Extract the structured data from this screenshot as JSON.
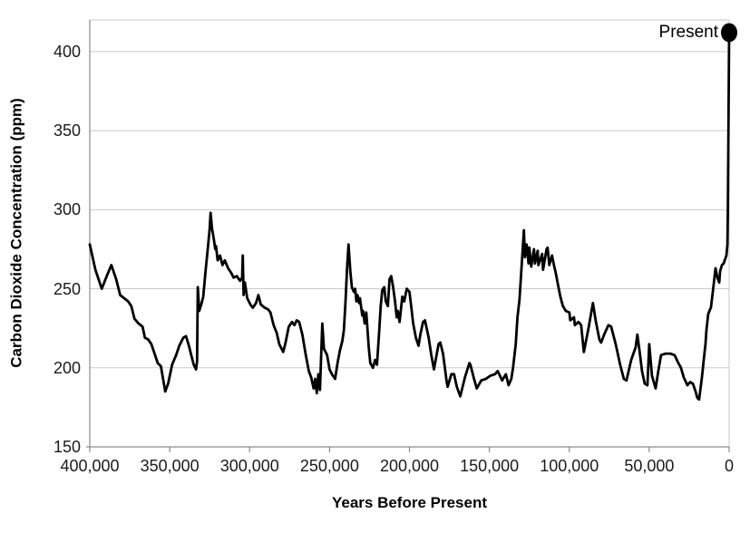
{
  "annotation_label": "Present",
  "colors": {
    "line": "#000000",
    "marker": "#000000",
    "gridline": "#c9c9c9",
    "axis_line": "#8a8a8a",
    "text": "#1a1a1a"
  },
  "chart_data": {
    "type": "line",
    "title": "",
    "xlabel": "Years Before Present",
    "ylabel": "Carbon Dioxide Concentration (ppm)",
    "xlim": [
      400000,
      0
    ],
    "ylim": [
      150,
      420
    ],
    "x_tick_values": [
      400000,
      350000,
      300000,
      250000,
      200000,
      150000,
      100000,
      50000,
      0
    ],
    "x_tick_labels": [
      "400,000",
      "350,000",
      "300,000",
      "250,000",
      "200,000",
      "150,000",
      "100,000",
      "50,000",
      "0"
    ],
    "y_tick_values": [
      150,
      200,
      250,
      300,
      350,
      400
    ],
    "y_tick_labels": [
      "150",
      "200",
      "250",
      "300",
      "350",
      "400"
    ],
    "grid": "horizontal",
    "legend": "none",
    "annotation": {
      "label": "Present",
      "x": 0,
      "y": 412
    },
    "series": [
      {
        "points": [
          [
            400000,
            278
          ],
          [
            396500,
            262
          ],
          [
            392500,
            250
          ],
          [
            389000,
            259
          ],
          [
            386500,
            265
          ],
          [
            383500,
            256
          ],
          [
            381000,
            246
          ],
          [
            378500,
            244
          ],
          [
            376000,
            242
          ],
          [
            374000,
            239
          ],
          [
            372000,
            231
          ],
          [
            369500,
            228
          ],
          [
            367000,
            226
          ],
          [
            365500,
            219
          ],
          [
            363500,
            218
          ],
          [
            361500,
            215
          ],
          [
            359500,
            209
          ],
          [
            357500,
            203
          ],
          [
            355500,
            201
          ],
          [
            354000,
            192
          ],
          [
            352800,
            185
          ],
          [
            351000,
            190
          ],
          [
            348500,
            202
          ],
          [
            346000,
            208
          ],
          [
            344000,
            214
          ],
          [
            341500,
            219
          ],
          [
            339800,
            220
          ],
          [
            338000,
            214
          ],
          [
            336500,
            208
          ],
          [
            335000,
            202
          ],
          [
            333500,
            199
          ],
          [
            332900,
            204
          ],
          [
            332400,
            251
          ],
          [
            331500,
            236
          ],
          [
            330000,
            241
          ],
          [
            329000,
            245
          ],
          [
            327500,
            262
          ],
          [
            326000,
            277
          ],
          [
            325000,
            288
          ],
          [
            324400,
            298
          ],
          [
            323500,
            288
          ],
          [
            322500,
            282
          ],
          [
            321500,
            275
          ],
          [
            321000,
            277
          ],
          [
            320000,
            268
          ],
          [
            318500,
            271
          ],
          [
            317000,
            265
          ],
          [
            315500,
            268
          ],
          [
            313500,
            263
          ],
          [
            311500,
            260
          ],
          [
            310000,
            257
          ],
          [
            308000,
            258
          ],
          [
            306000,
            255
          ],
          [
            304700,
            257
          ],
          [
            304300,
            271
          ],
          [
            303800,
            246
          ],
          [
            303000,
            254
          ],
          [
            301500,
            244
          ],
          [
            299500,
            240
          ],
          [
            298000,
            238
          ],
          [
            296000,
            241
          ],
          [
            294500,
            246
          ],
          [
            293000,
            240
          ],
          [
            290500,
            238
          ],
          [
            288500,
            237
          ],
          [
            287000,
            235
          ],
          [
            285000,
            227
          ],
          [
            283000,
            222
          ],
          [
            281500,
            215
          ],
          [
            280000,
            212
          ],
          [
            279000,
            210
          ],
          [
            277500,
            216
          ],
          [
            275500,
            226
          ],
          [
            273500,
            229
          ],
          [
            272000,
            227
          ],
          [
            270500,
            230
          ],
          [
            269000,
            229
          ],
          [
            267000,
            221
          ],
          [
            265000,
            209
          ],
          [
            263000,
            198
          ],
          [
            261500,
            194
          ],
          [
            260000,
            187
          ],
          [
            259000,
            193
          ],
          [
            258000,
            184
          ],
          [
            257000,
            196
          ],
          [
            256000,
            186
          ],
          [
            254500,
            228
          ],
          [
            253500,
            212
          ],
          [
            251500,
            208
          ],
          [
            250000,
            199
          ],
          [
            248500,
            196
          ],
          [
            246500,
            193
          ],
          [
            245000,
            203
          ],
          [
            243500,
            211
          ],
          [
            242000,
            217
          ],
          [
            241000,
            224
          ],
          [
            240000,
            242
          ],
          [
            239000,
            264
          ],
          [
            238100,
            278
          ],
          [
            237000,
            261
          ],
          [
            236000,
            251
          ],
          [
            234800,
            248
          ],
          [
            234000,
            250
          ],
          [
            233200,
            242
          ],
          [
            232500,
            246
          ],
          [
            231500,
            241
          ],
          [
            231000,
            244
          ],
          [
            229500,
            233
          ],
          [
            229000,
            236
          ],
          [
            228000,
            228
          ],
          [
            227000,
            235
          ],
          [
            225500,
            213
          ],
          [
            224500,
            203
          ],
          [
            222800,
            200
          ],
          [
            221500,
            205
          ],
          [
            220300,
            202
          ],
          [
            219000,
            222
          ],
          [
            218000,
            239
          ],
          [
            217000,
            249
          ],
          [
            215800,
            251
          ],
          [
            214800,
            242
          ],
          [
            213500,
            239
          ],
          [
            212500,
            256
          ],
          [
            211400,
            258
          ],
          [
            210200,
            251
          ],
          [
            209000,
            242
          ],
          [
            208000,
            232
          ],
          [
            207300,
            236
          ],
          [
            206200,
            229
          ],
          [
            204500,
            245
          ],
          [
            203300,
            242
          ],
          [
            201700,
            250
          ],
          [
            200000,
            248
          ],
          [
            198800,
            238
          ],
          [
            197700,
            228
          ],
          [
            196000,
            219
          ],
          [
            194300,
            214
          ],
          [
            193200,
            221
          ],
          [
            191500,
            229
          ],
          [
            190300,
            230
          ],
          [
            188000,
            219
          ],
          [
            186300,
            208
          ],
          [
            184700,
            199
          ],
          [
            181800,
            215
          ],
          [
            180700,
            216
          ],
          [
            179000,
            209
          ],
          [
            176700,
            191
          ],
          [
            176100,
            188
          ],
          [
            173800,
            196
          ],
          [
            172100,
            196
          ],
          [
            170400,
            188
          ],
          [
            168200,
            182
          ],
          [
            165300,
            194
          ],
          [
            162500,
            203
          ],
          [
            161900,
            202
          ],
          [
            159600,
            193
          ],
          [
            157900,
            187
          ],
          [
            156200,
            190
          ],
          [
            155100,
            192
          ],
          [
            152200,
            193
          ],
          [
            149400,
            195
          ],
          [
            146500,
            196
          ],
          [
            144800,
            198
          ],
          [
            142000,
            192
          ],
          [
            139700,
            196
          ],
          [
            138000,
            189
          ],
          [
            136300,
            193
          ],
          [
            135200,
            200
          ],
          [
            133500,
            215
          ],
          [
            132400,
            232
          ],
          [
            131200,
            243
          ],
          [
            130100,
            260
          ],
          [
            128400,
            287
          ],
          [
            127800,
            270
          ],
          [
            126700,
            278
          ],
          [
            125500,
            266
          ],
          [
            125000,
            276
          ],
          [
            123800,
            264
          ],
          [
            122100,
            275
          ],
          [
            121500,
            266
          ],
          [
            119800,
            274
          ],
          [
            119300,
            265
          ],
          [
            117000,
            272
          ],
          [
            116400,
            262
          ],
          [
            114200,
            275
          ],
          [
            113600,
            276
          ],
          [
            112500,
            265
          ],
          [
            110800,
            271
          ],
          [
            109600,
            265
          ],
          [
            108500,
            260
          ],
          [
            106800,
            251
          ],
          [
            105600,
            245
          ],
          [
            104000,
            239
          ],
          [
            102200,
            236
          ],
          [
            100000,
            235
          ],
          [
            99400,
            230
          ],
          [
            97100,
            232
          ],
          [
            96500,
            227
          ],
          [
            94300,
            229
          ],
          [
            92600,
            227
          ],
          [
            90900,
            210
          ],
          [
            88000,
            225
          ],
          [
            85200,
            241
          ],
          [
            83500,
            230
          ],
          [
            81200,
            218
          ],
          [
            80100,
            216
          ],
          [
            77800,
            222
          ],
          [
            75500,
            227
          ],
          [
            73800,
            226
          ],
          [
            71000,
            215
          ],
          [
            68200,
            202
          ],
          [
            65900,
            193
          ],
          [
            64200,
            192
          ],
          [
            61300,
            205
          ],
          [
            58500,
            213
          ],
          [
            57400,
            221
          ],
          [
            55700,
            208
          ],
          [
            54500,
            198
          ],
          [
            52800,
            190
          ],
          [
            51100,
            189
          ],
          [
            50000,
            215
          ],
          [
            48300,
            195
          ],
          [
            46000,
            187
          ],
          [
            44300,
            198
          ],
          [
            42600,
            208
          ],
          [
            39800,
            209
          ],
          [
            36900,
            209
          ],
          [
            34100,
            208
          ],
          [
            31800,
            203
          ],
          [
            30100,
            200
          ],
          [
            28400,
            194
          ],
          [
            26100,
            189
          ],
          [
            24400,
            191
          ],
          [
            22700,
            190
          ],
          [
            21000,
            185
          ],
          [
            19900,
            181
          ],
          [
            18800,
            180
          ],
          [
            17000,
            194
          ],
          [
            15900,
            205
          ],
          [
            14800,
            215
          ],
          [
            14200,
            224
          ],
          [
            13100,
            234
          ],
          [
            11900,
            237
          ],
          [
            11400,
            238
          ],
          [
            10200,
            248
          ],
          [
            9100,
            258
          ],
          [
            8500,
            263
          ],
          [
            7400,
            257
          ],
          [
            6200,
            254
          ],
          [
            5700,
            261
          ],
          [
            4500,
            265
          ],
          [
            3400,
            266
          ],
          [
            2800,
            268
          ],
          [
            1700,
            271
          ],
          [
            1100,
            278
          ],
          [
            800,
            300
          ],
          [
            500,
            340
          ],
          [
            250,
            380
          ],
          [
            0,
            412
          ]
        ]
      }
    ]
  }
}
